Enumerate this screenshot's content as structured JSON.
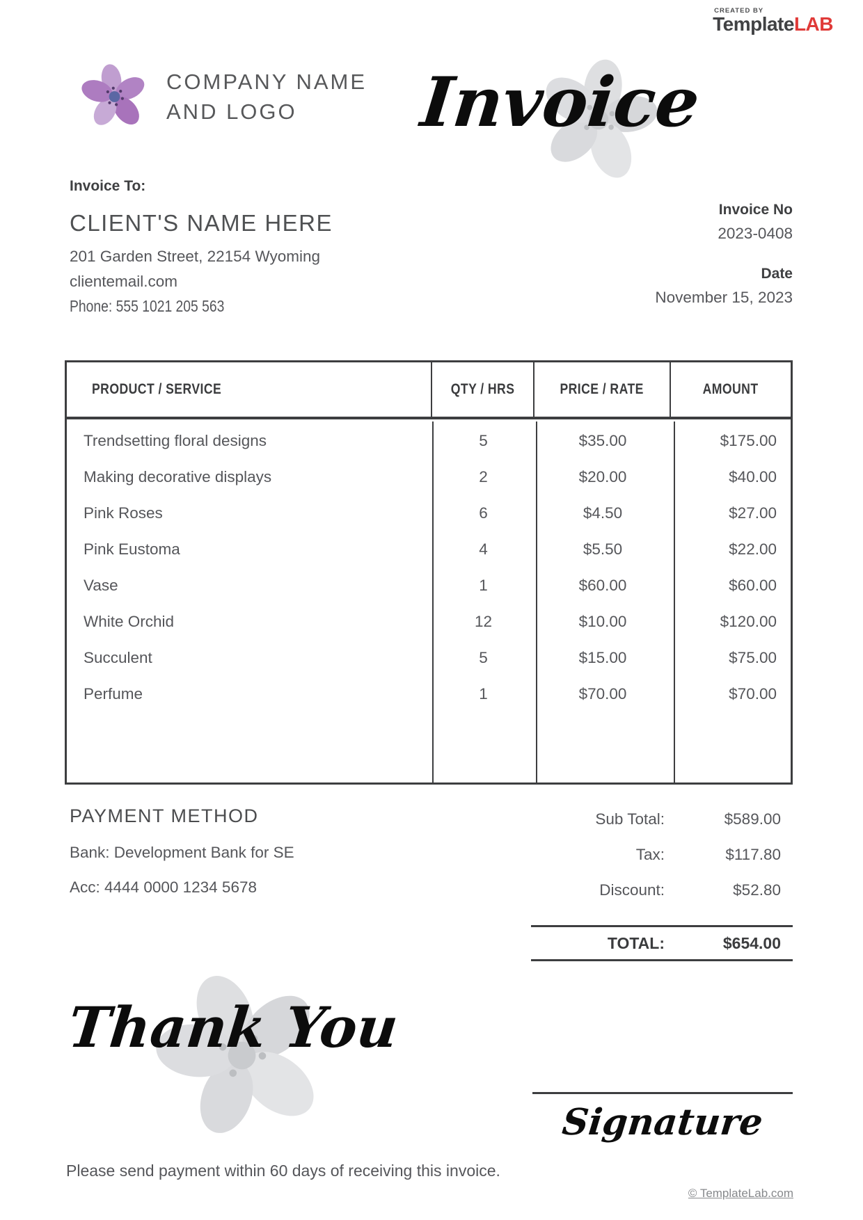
{
  "branding": {
    "created_by": "CREATED BY",
    "name_dark": "Template",
    "name_red": "LAB"
  },
  "colors": {
    "ink": "#3d3e40",
    "text": "#55565a",
    "brand-red": "#e03a38"
  },
  "header": {
    "company_name_line1": "COMPANY NAME",
    "company_name_line2": "AND LOGO",
    "invoice_title": "Invoice"
  },
  "invoice_to": {
    "label": "Invoice To:",
    "client_name": "CLIENT'S NAME HERE",
    "address": "201 Garden Street, 22154 Wyoming",
    "email": "clientemail.com",
    "phone": "Phone: 555 1021 205 563"
  },
  "meta": {
    "invoice_no_label": "Invoice No",
    "invoice_no": "2023-0408",
    "date_label": "Date",
    "date": "November 15, 2023"
  },
  "table": {
    "headers": [
      "PRODUCT / SERVICE",
      "QTY / HRS",
      "PRICE / RATE",
      "AMOUNT"
    ],
    "rows": [
      {
        "product": "Trendsetting floral designs",
        "qty": "5",
        "price": "$35.00",
        "amount": "$175.00"
      },
      {
        "product": "Making decorative displays",
        "qty": "2",
        "price": "$20.00",
        "amount": "$40.00"
      },
      {
        "product": "Pink Roses",
        "qty": "6",
        "price": "$4.50",
        "amount": "$27.00"
      },
      {
        "product": "Pink Eustoma",
        "qty": "4",
        "price": "$5.50",
        "amount": "$22.00"
      },
      {
        "product": "Vase",
        "qty": "1",
        "price": "$60.00",
        "amount": "$60.00"
      },
      {
        "product": "White Orchid",
        "qty": "12",
        "price": "$10.00",
        "amount": "$120.00"
      },
      {
        "product": "Succulent",
        "qty": "5",
        "price": "$15.00",
        "amount": "$75.00"
      },
      {
        "product": "Perfume",
        "qty": "1",
        "price": "$70.00",
        "amount": "$70.00"
      }
    ]
  },
  "payment": {
    "title": "PAYMENT METHOD",
    "bank": "Bank: Development Bank for SE",
    "account": "Acc: 4444 0000 1234 5678"
  },
  "totals": {
    "rows": [
      {
        "label": "Sub Total:",
        "value": "$589.00"
      },
      {
        "label": "Tax:",
        "value": "$117.80"
      },
      {
        "label": "Discount:",
        "value": "$52.80"
      }
    ],
    "total_label": "TOTAL:",
    "total_value": "$654.00"
  },
  "footer": {
    "thank_you": "Thank You",
    "signature": "Signature",
    "note": "Please send payment within 60 days of receiving this invoice.",
    "copyright": "© TemplateLab.com"
  },
  "icons": [
    "logo-flower-icon",
    "invoice-flower-icon",
    "thankyou-flower-icon"
  ]
}
